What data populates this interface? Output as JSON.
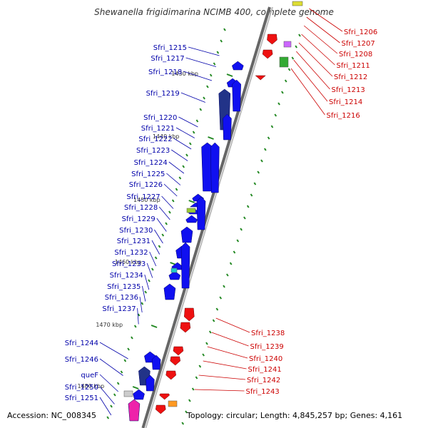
{
  "title": "Shewanella frigidimarina NCIMB 400, complete genome",
  "footer": {
    "accession": "Accession: NC_008345",
    "summary": "Topology: circular; Length: 4,845,257 bp; Genes: 4,161"
  },
  "colors": {
    "plus_strand": "#1010f0",
    "minus_strand": "#ee1111",
    "backbone": "#888888",
    "kbp_tick": "#228822",
    "label_plus": "#0000aa",
    "label_minus": "#cc0000"
  },
  "kbp_ticks": [
    "1430 kbp",
    "1440 kbp",
    "1450 kbp",
    "1460 kbp",
    "1470 kbp",
    "1480 kbp"
  ],
  "left_genes": [
    "Sfri_1215",
    "Sfri_1217",
    "Sfri_1218",
    "Sfri_1219",
    "Sfri_1220",
    "Sfri_1221",
    "Sfri_1222",
    "Sfri_1223",
    "Sfri_1224",
    "Sfri_1225",
    "Sfri_1226",
    "Sfri_1227",
    "Sfri_1228",
    "Sfri_1229",
    "Sfri_1230",
    "Sfri_1231",
    "Sfri_1232",
    "Sfri_1233",
    "Sfri_1234",
    "Sfri_1235",
    "Sfri_1236",
    "Sfri_1237",
    "Sfri_1244",
    "Sfri_1246",
    "queF",
    "Sfri_1250",
    "Sfri_1251"
  ],
  "right_genes": [
    "Sfri_1206",
    "Sfri_1207",
    "Sfri_1208",
    "Sfri_1211",
    "Sfri_1212",
    "Sfri_1213",
    "Sfri_1214",
    "Sfri_1216",
    "Sfri_1238",
    "Sfri_1239",
    "Sfri_1240",
    "Sfri_1241",
    "Sfri_1242",
    "Sfri_1243"
  ]
}
